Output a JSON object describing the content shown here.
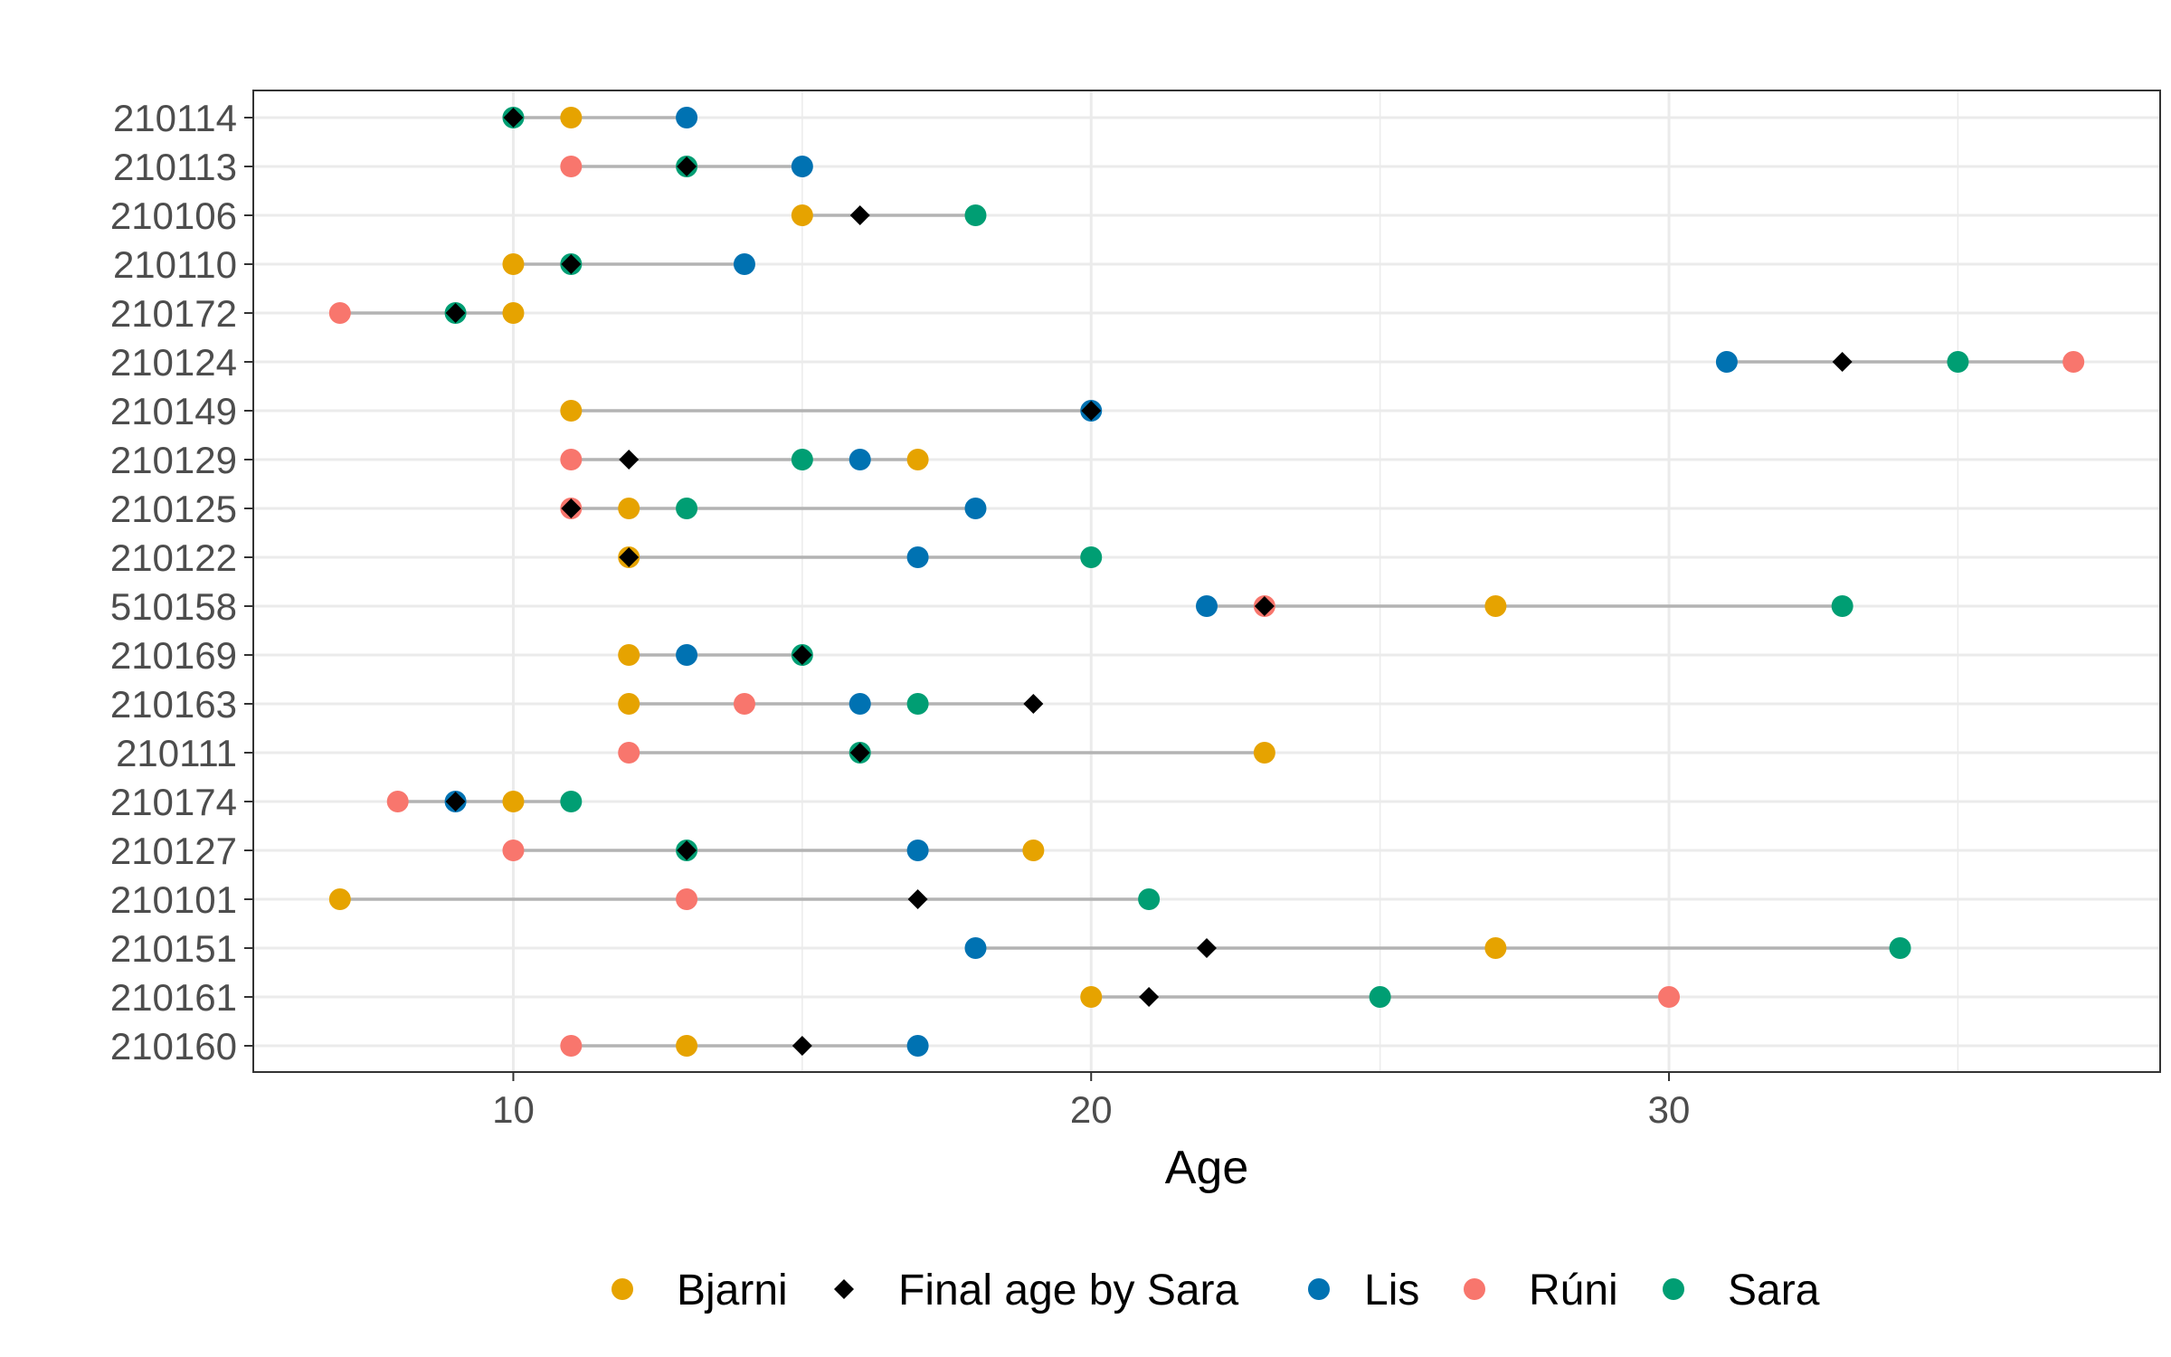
{
  "chart_data": {
    "type": "scatter",
    "xlabel": "Age",
    "ylabel": "",
    "xlim": [
      5.5,
      38.5
    ],
    "x_ticks": [
      10,
      20,
      30
    ],
    "grid": true,
    "legend_position": "bottom",
    "categories": [
      "210114",
      "210113",
      "210106",
      "210110",
      "210172",
      "210124",
      "210149",
      "210129",
      "210125",
      "210122",
      "510158",
      "210169",
      "210163",
      "210111",
      "210174",
      "210127",
      "210101",
      "210151",
      "210161",
      "210160"
    ],
    "series": [
      {
        "name": "Bjarni",
        "marker": "circle",
        "color": "#E6A300",
        "values": [
          11,
          null,
          15,
          10,
          10,
          null,
          11,
          17,
          12,
          12,
          27,
          12,
          12,
          23,
          10,
          19,
          7,
          27,
          20,
          13
        ]
      },
      {
        "name": "Final age by Sara",
        "marker": "diamond",
        "color": "#000000",
        "values": [
          10,
          13,
          16,
          11,
          9,
          33,
          20,
          12,
          11,
          12,
          23,
          15,
          19,
          16,
          9,
          13,
          17,
          22,
          21,
          15
        ]
      },
      {
        "name": "Lis",
        "marker": "circle",
        "color": "#0072B2",
        "values": [
          13,
          15,
          null,
          14,
          null,
          31,
          20,
          16,
          18,
          17,
          22,
          13,
          16,
          null,
          9,
          17,
          null,
          18,
          null,
          17
        ]
      },
      {
        "name": "Rúni",
        "marker": "circle",
        "color": "#F8766D",
        "values": [
          null,
          11,
          null,
          null,
          7,
          37,
          null,
          11,
          11,
          null,
          23,
          null,
          14,
          12,
          8,
          10,
          13,
          null,
          30,
          11
        ]
      },
      {
        "name": "Sara",
        "marker": "circle",
        "color": "#009E73",
        "values": [
          10,
          13,
          18,
          11,
          9,
          35,
          null,
          15,
          13,
          20,
          33,
          15,
          17,
          16,
          11,
          13,
          21,
          34,
          25,
          null
        ]
      }
    ]
  },
  "colors": {
    "segment": "#b3b3b3",
    "grid": "#ebebeb",
    "panel_border": "#333333"
  }
}
